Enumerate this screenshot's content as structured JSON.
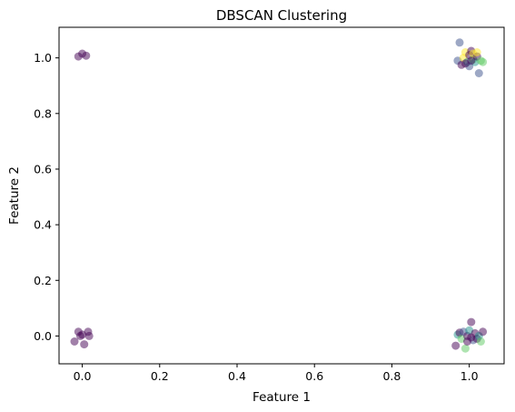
{
  "chart_data": {
    "type": "scatter",
    "title": "DBSCAN Clustering",
    "xlabel": "Feature 1",
    "ylabel": "Feature 2",
    "xlim": [
      -0.06,
      1.09
    ],
    "ylim": [
      -0.1,
      1.11
    ],
    "x_ticks": [
      0.0,
      0.2,
      0.4,
      0.6,
      0.8,
      1.0
    ],
    "y_ticks": [
      0.0,
      0.2,
      0.4,
      0.6,
      0.8,
      1.0
    ],
    "tick_labels_x": [
      "0.0",
      "0.2",
      "0.4",
      "0.6",
      "0.8",
      "1.0"
    ],
    "tick_labels_y": [
      "0.0",
      "0.2",
      "0.4",
      "0.6",
      "0.8",
      "1.0"
    ],
    "grid": false,
    "legend": false,
    "marker_alpha": 0.5,
    "colormap": "viridis",
    "cluster_colors": {
      "purple": "#440154",
      "blue": "#3b528b",
      "teal": "#21918c",
      "green": "#5ec962",
      "yellow": "#fde725"
    },
    "points": [
      {
        "x": -0.01,
        "y": 1.005,
        "c": "purple"
      },
      {
        "x": 0.0,
        "y": 1.015,
        "c": "purple"
      },
      {
        "x": 0.01,
        "y": 1.008,
        "c": "purple"
      },
      {
        "x": -0.02,
        "y": -0.02,
        "c": "purple"
      },
      {
        "x": -0.01,
        "y": 0.015,
        "c": "purple"
      },
      {
        "x": -0.005,
        "y": 0.0,
        "c": "purple"
      },
      {
        "x": 0.0,
        "y": 0.005,
        "c": "purple"
      },
      {
        "x": 0.005,
        "y": -0.03,
        "c": "purple"
      },
      {
        "x": 0.015,
        "y": 0.015,
        "c": "purple"
      },
      {
        "x": 0.018,
        "y": 0.0,
        "c": "purple"
      },
      {
        "x": 0.975,
        "y": 1.055,
        "c": "blue"
      },
      {
        "x": 0.97,
        "y": 0.99,
        "c": "blue"
      },
      {
        "x": 0.98,
        "y": 0.975,
        "c": "purple"
      },
      {
        "x": 0.985,
        "y": 1.0,
        "c": "yellow"
      },
      {
        "x": 0.99,
        "y": 1.02,
        "c": "yellow"
      },
      {
        "x": 0.995,
        "y": 0.985,
        "c": "teal"
      },
      {
        "x": 1.0,
        "y": 1.01,
        "c": "purple"
      },
      {
        "x": 1.0,
        "y": 0.97,
        "c": "blue"
      },
      {
        "x": 1.005,
        "y": 1.025,
        "c": "purple"
      },
      {
        "x": 1.01,
        "y": 0.995,
        "c": "green"
      },
      {
        "x": 1.01,
        "y": 1.015,
        "c": "yellow"
      },
      {
        "x": 1.015,
        "y": 0.985,
        "c": "teal"
      },
      {
        "x": 1.02,
        "y": 1.005,
        "c": "purple"
      },
      {
        "x": 1.02,
        "y": 1.02,
        "c": "yellow"
      },
      {
        "x": 1.025,
        "y": 0.945,
        "c": "blue"
      },
      {
        "x": 1.03,
        "y": 0.99,
        "c": "green"
      },
      {
        "x": 1.035,
        "y": 0.985,
        "c": "green"
      },
      {
        "x": 1.005,
        "y": 0.99,
        "c": "purple"
      },
      {
        "x": 0.99,
        "y": 0.98,
        "c": "purple"
      },
      {
        "x": 0.965,
        "y": -0.035,
        "c": "purple"
      },
      {
        "x": 0.97,
        "y": 0.005,
        "c": "teal"
      },
      {
        "x": 0.975,
        "y": 0.012,
        "c": "purple"
      },
      {
        "x": 0.98,
        "y": -0.01,
        "c": "green"
      },
      {
        "x": 0.985,
        "y": 0.015,
        "c": "blue"
      },
      {
        "x": 0.99,
        "y": -0.045,
        "c": "green"
      },
      {
        "x": 0.995,
        "y": 0.0,
        "c": "purple"
      },
      {
        "x": 1.0,
        "y": 0.02,
        "c": "teal"
      },
      {
        "x": 1.005,
        "y": 0.05,
        "c": "purple"
      },
      {
        "x": 1.01,
        "y": -0.015,
        "c": "blue"
      },
      {
        "x": 1.015,
        "y": 0.01,
        "c": "purple"
      },
      {
        "x": 1.02,
        "y": -0.01,
        "c": "purple"
      },
      {
        "x": 1.025,
        "y": 0.0,
        "c": "teal"
      },
      {
        "x": 1.03,
        "y": -0.02,
        "c": "green"
      },
      {
        "x": 1.035,
        "y": 0.015,
        "c": "purple"
      },
      {
        "x": 0.995,
        "y": -0.02,
        "c": "purple"
      },
      {
        "x": 1.005,
        "y": -0.005,
        "c": "purple"
      }
    ]
  }
}
